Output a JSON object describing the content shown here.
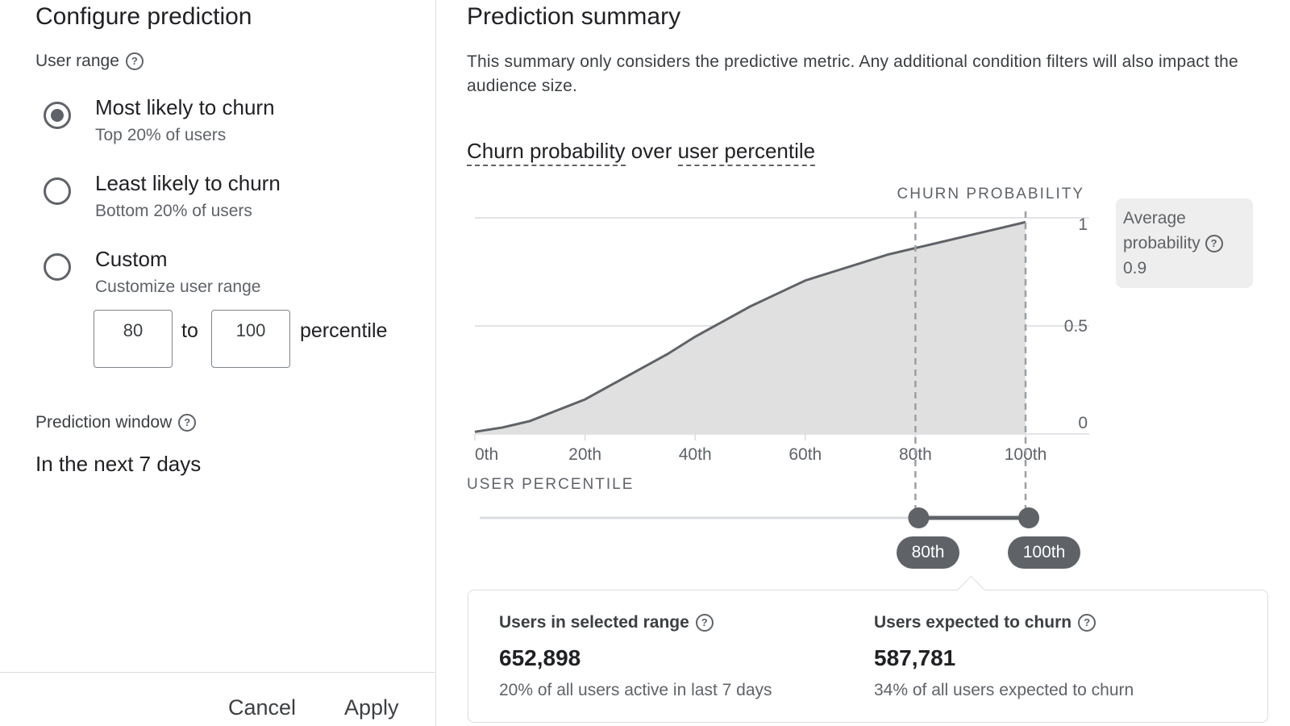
{
  "config": {
    "title": "Configure prediction",
    "user_range_label": "User range",
    "options": [
      {
        "title": "Most likely to churn",
        "subtitle": "Top 20% of users",
        "checked": true
      },
      {
        "title": "Least likely to churn",
        "subtitle": "Bottom 20% of users",
        "checked": false
      },
      {
        "title": "Custom",
        "subtitle": "Customize user range",
        "checked": false
      }
    ],
    "custom_range": {
      "from": "80",
      "to_label": "to",
      "to": "100",
      "unit_label": "percentile"
    },
    "prediction_window_label": "Prediction window",
    "prediction_window_value": "In the next 7 days",
    "cancel_label": "Cancel",
    "apply_label": "Apply"
  },
  "summary": {
    "title": "Prediction summary",
    "description": "This summary only considers the predictive metric. Any additional condition filters will also impact the audience size.",
    "chart_title_part1": "Churn probability",
    "chart_title_sep": " over ",
    "chart_title_part2": "user percentile",
    "average_label": "Average probability",
    "average_value": "0.9",
    "selection": {
      "start_label": "80th",
      "end_label": "100th",
      "start": 80,
      "end": 100
    },
    "stats": [
      {
        "label": "Users in selected range",
        "value": "652,898",
        "sub": "20% of all users active in last 7 days"
      },
      {
        "label": "Users expected to churn",
        "value": "587,781",
        "sub": "34% of all users expected to churn"
      }
    ]
  },
  "chart_data": {
    "type": "area",
    "title": "Churn probability over user percentile",
    "xlabel": "USER PERCENTILE",
    "ylabel": "CHURN PROBABILITY",
    "x": [
      0,
      5,
      10,
      15,
      20,
      25,
      30,
      35,
      40,
      45,
      50,
      55,
      60,
      65,
      70,
      75,
      80,
      85,
      90,
      95,
      100
    ],
    "y": [
      0.01,
      0.03,
      0.06,
      0.11,
      0.16,
      0.23,
      0.3,
      0.37,
      0.45,
      0.52,
      0.59,
      0.65,
      0.71,
      0.75,
      0.79,
      0.83,
      0.86,
      0.89,
      0.92,
      0.95,
      0.98
    ],
    "xlim": [
      0,
      100
    ],
    "ylim": [
      0,
      1
    ],
    "x_ticks": [
      "0th",
      "20th",
      "40th",
      "60th",
      "80th",
      "100th"
    ],
    "y_ticks": [
      "0",
      "0.5",
      "1"
    ],
    "grid": true,
    "colors": {
      "line": "#5f6368",
      "fill": "#e0e0e0",
      "grid": "#dadce0"
    }
  }
}
